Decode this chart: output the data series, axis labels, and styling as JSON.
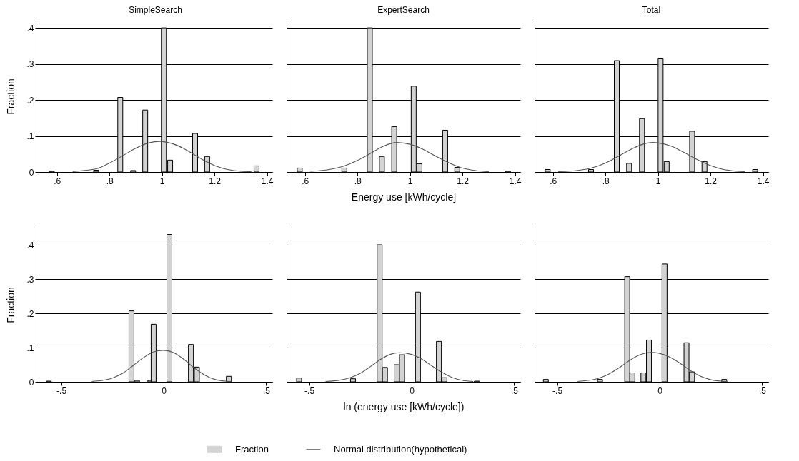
{
  "chart_data": [
    {
      "type": "bar",
      "title": "SimpleSearch",
      "ylabel": "Fraction",
      "xlim": [
        0.53,
        1.42
      ],
      "ylim": [
        0,
        0.42
      ],
      "xticks": [
        {
          "value": 0.6,
          "label": ".6"
        },
        {
          "value": 0.8,
          "label": ".8"
        },
        1,
        1.2,
        1.4
      ],
      "yticks": [
        0,
        {
          "value": 0.1,
          "label": ".1"
        },
        {
          "value": 0.2,
          "label": ".2"
        },
        {
          "value": 0.3,
          "label": ".3"
        },
        {
          "value": 0.4,
          "label": ".4"
        }
      ],
      "grid": "y",
      "marker": "none",
      "series": [
        {
          "color": "#d3d3d3",
          "x": [
            0.58,
            0.749,
            0.841,
            0.89,
            0.936,
            1.007,
            1.031,
            1.126,
            1.172,
            1.36
          ],
          "values": [
            0.002,
            0.005,
            0.207,
            0.004,
            0.172,
            0.4,
            0.033,
            0.107,
            0.043,
            0.017
          ]
        },
        {
          "type": "line",
          "color": "#555555",
          "x": [
            0.66,
            0.7,
            0.75,
            0.8,
            0.85,
            0.9,
            0.95,
            0.99,
            1.05,
            1.1,
            1.15,
            1.2,
            1.25,
            1.3,
            1.34
          ],
          "values": [
            0.001,
            0.004,
            0.009,
            0.025,
            0.045,
            0.066,
            0.081,
            0.085,
            0.076,
            0.058,
            0.036,
            0.018,
            0.007,
            0.002,
            0.001
          ]
        }
      ]
    },
    {
      "type": "bar",
      "title": "ExpertSearch",
      "xlabel": "Energy use [kWh/cycle]",
      "xlim": [
        0.53,
        1.42
      ],
      "ylim": [
        0,
        0.42
      ],
      "xticks": [
        {
          "value": 0.6,
          "label": ".6"
        },
        {
          "value": 0.8,
          "label": ".8"
        },
        1,
        1.2,
        1.4
      ],
      "yticks": [
        0,
        0.1,
        0.2,
        0.3,
        0.4
      ],
      "grid": "y",
      "tick_labels": "x",
      "marker": "none",
      "series": [
        {
          "color": "#d3d3d3",
          "x": [
            0.58,
            0.75,
            0.847,
            0.893,
            0.94,
            1.014,
            1.036,
            1.134,
            1.18,
            1.373
          ],
          "values": [
            0.011,
            0.011,
            0.4,
            0.043,
            0.126,
            0.238,
            0.023,
            0.116,
            0.013,
            0.002
          ]
        },
        {
          "type": "line",
          "color": "#555555",
          "x": [
            0.62,
            0.7,
            0.75,
            0.8,
            0.85,
            0.9,
            0.95,
            1.0,
            1.05,
            1.1,
            1.15,
            1.2,
            1.25,
            1.3
          ],
          "values": [
            0.002,
            0.008,
            0.017,
            0.032,
            0.052,
            0.072,
            0.082,
            0.077,
            0.063,
            0.043,
            0.025,
            0.011,
            0.004,
            0.001
          ]
        }
      ]
    },
    {
      "type": "bar",
      "title": "Total",
      "xlim": [
        0.53,
        1.42
      ],
      "ylim": [
        0,
        0.42
      ],
      "xticks": [
        {
          "value": 0.6,
          "label": ".6"
        },
        {
          "value": 0.8,
          "label": ".8"
        },
        1,
        1.2,
        1.4
      ],
      "yticks": [
        0,
        0.1,
        0.2,
        0.3,
        0.4
      ],
      "grid": "y",
      "tick_labels": "x",
      "marker": "none",
      "series": [
        {
          "color": "#d3d3d3",
          "x": [
            0.58,
            0.745,
            0.843,
            0.89,
            0.939,
            1.01,
            1.033,
            1.13,
            1.177,
            1.37
          ],
          "values": [
            0.007,
            0.007,
            0.309,
            0.024,
            0.148,
            0.316,
            0.029,
            0.113,
            0.029,
            0.007
          ]
        },
        {
          "type": "line",
          "color": "#555555",
          "x": [
            0.62,
            0.7,
            0.75,
            0.8,
            0.85,
            0.9,
            0.95,
            0.98,
            1.0,
            1.05,
            1.1,
            1.15,
            1.2,
            1.25,
            1.3,
            1.33
          ],
          "values": [
            0.001,
            0.005,
            0.012,
            0.025,
            0.044,
            0.064,
            0.079,
            0.082,
            0.081,
            0.072,
            0.054,
            0.034,
            0.018,
            0.007,
            0.002,
            0.001
          ]
        }
      ]
    },
    {
      "type": "bar",
      "ylabel": "Fraction",
      "xlim": [
        -0.61,
        0.53
      ],
      "ylim": [
        0,
        0.45
      ],
      "xticks": [
        {
          "value": -0.5,
          "label": "-.5"
        },
        0,
        {
          "value": 0.5,
          "label": ".5"
        }
      ],
      "yticks": [
        0,
        {
          "value": 0.1,
          "label": ".1"
        },
        {
          "value": 0.2,
          "label": ".2"
        },
        {
          "value": 0.3,
          "label": ".3"
        },
        {
          "value": 0.4,
          "label": ".4"
        }
      ],
      "grid": "y",
      "marker": "none",
      "series": [
        {
          "color": "#d3d3d3",
          "x": [
            -0.56,
            -0.157,
            -0.13,
            -0.065,
            -0.049,
            0.028,
            0.133,
            0.162,
            0.318
          ],
          "values": [
            0.002,
            0.207,
            0.004,
            0.004,
            0.168,
            0.43,
            0.109,
            0.043,
            0.016
          ]
        },
        {
          "type": "line",
          "color": "#555555",
          "x": [
            -0.35,
            -0.3,
            -0.25,
            -0.2,
            -0.15,
            -0.1,
            -0.05,
            0,
            0.05,
            0.1,
            0.15,
            0.2,
            0.25,
            0.3,
            0.33
          ],
          "values": [
            0.001,
            0.004,
            0.011,
            0.025,
            0.047,
            0.07,
            0.087,
            0.092,
            0.085,
            0.065,
            0.04,
            0.02,
            0.007,
            0.002,
            0.001
          ]
        }
      ]
    },
    {
      "type": "bar",
      "xlabel": "ln (energy use [kWh/cycle])",
      "xlim": [
        -0.61,
        0.53
      ],
      "ylim": [
        0,
        0.45
      ],
      "xticks": [
        {
          "value": -0.5,
          "label": "-.5"
        },
        0,
        {
          "value": 0.5,
          "label": ".5"
        }
      ],
      "yticks": [
        0,
        0.1,
        0.2,
        0.3,
        0.4
      ],
      "grid": "y",
      "tick_labels": "x",
      "marker": "none",
      "legend": "bottom",
      "series": [
        {
          "name": "Fraction",
          "color": "#d3d3d3",
          "x": [
            -0.549,
            -0.286,
            -0.156,
            -0.13,
            -0.073,
            -0.047,
            0.031,
            0.133,
            0.16,
            0.318
          ],
          "values": [
            0.011,
            0.009,
            0.4,
            0.042,
            0.05,
            0.079,
            0.262,
            0.118,
            0.012,
            0.002
          ]
        },
        {
          "type": "line",
          "name": "Normal distribution(hypothetical)",
          "color": "#555555",
          "x": [
            -0.42,
            -0.35,
            -0.3,
            -0.25,
            -0.2,
            -0.15,
            -0.1,
            -0.06,
            0,
            0.05,
            0.1,
            0.15,
            0.2,
            0.25,
            0.3
          ],
          "values": [
            0.001,
            0.005,
            0.012,
            0.025,
            0.045,
            0.066,
            0.081,
            0.085,
            0.08,
            0.066,
            0.046,
            0.027,
            0.012,
            0.004,
            0.001
          ]
        }
      ]
    },
    {
      "type": "bar",
      "xlim": [
        -0.61,
        0.53
      ],
      "ylim": [
        0,
        0.45
      ],
      "xticks": [
        {
          "value": -0.5,
          "label": "-.5"
        },
        0,
        {
          "value": 0.5,
          "label": ".5"
        }
      ],
      "yticks": [
        0,
        0.1,
        0.2,
        0.3,
        0.4
      ],
      "grid": "y",
      "tick_labels": "x",
      "marker": "none",
      "series": [
        {
          "color": "#d3d3d3",
          "x": [
            -0.555,
            -0.291,
            -0.158,
            -0.133,
            -0.079,
            -0.052,
            0.024,
            0.131,
            0.158,
            0.315
          ],
          "values": [
            0.007,
            0.007,
            0.307,
            0.026,
            0.026,
            0.122,
            0.344,
            0.114,
            0.029,
            0.007
          ]
        },
        {
          "type": "line",
          "color": "#555555",
          "x": [
            -0.4,
            -0.35,
            -0.3,
            -0.25,
            -0.2,
            -0.15,
            -0.1,
            -0.04,
            0,
            0.05,
            0.1,
            0.15,
            0.2,
            0.25,
            0.3,
            0.33
          ],
          "values": [
            0.001,
            0.004,
            0.01,
            0.022,
            0.04,
            0.061,
            0.078,
            0.086,
            0.083,
            0.072,
            0.054,
            0.033,
            0.016,
            0.006,
            0.002,
            0.001
          ]
        }
      ]
    }
  ]
}
